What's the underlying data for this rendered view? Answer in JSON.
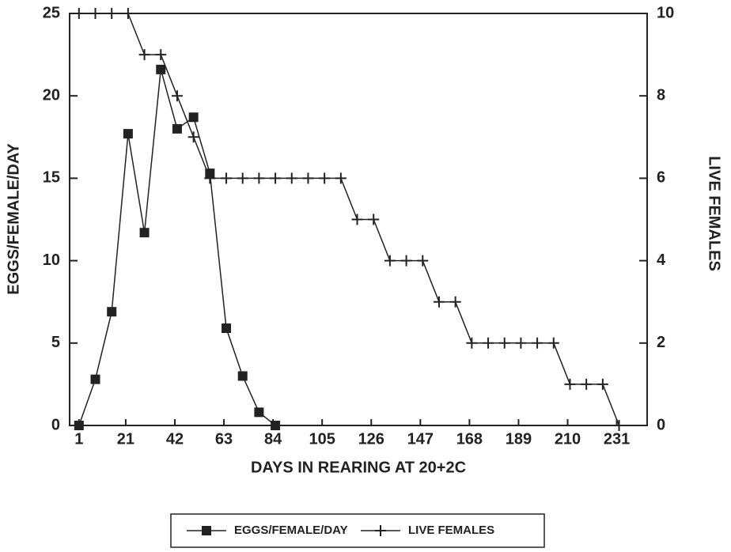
{
  "chart_data": {
    "type": "line",
    "xlabel": "DAYS IN REARING AT 20+2C",
    "ylabel": "EGGS/FEMALE/DAY",
    "y2label": "LIVE FEMALES",
    "x": [
      1,
      8,
      15,
      22,
      29,
      36,
      43,
      50,
      57,
      64,
      71,
      78,
      85,
      92,
      99,
      106,
      113,
      120,
      127,
      134,
      141,
      148,
      155,
      162,
      169,
      176,
      183,
      190,
      197,
      204,
      211,
      218,
      225,
      232
    ],
    "xlim": [
      -3,
      244
    ],
    "xticks": [
      1,
      21,
      42,
      63,
      84,
      105,
      126,
      147,
      168,
      189,
      210,
      231
    ],
    "ylim": [
      0,
      25
    ],
    "yticks": [
      0,
      5,
      10,
      15,
      20,
      25
    ],
    "y2lim": [
      0,
      10
    ],
    "y2ticks": [
      0,
      2,
      4,
      6,
      8,
      10
    ],
    "series": [
      {
        "name": "EGGS/FEMALE/DAY",
        "color": "#222222",
        "marker": "square",
        "values": [
          0,
          2.8,
          6.9,
          17.7,
          11.7,
          21.6,
          18.0,
          18.7,
          15.3,
          5.9,
          3.0,
          0.8,
          0,
          null,
          null,
          null,
          null,
          null,
          null,
          null,
          null,
          null,
          null,
          null,
          null,
          null,
          null,
          null,
          null,
          null,
          null,
          null,
          null,
          null
        ]
      },
      {
        "name": "LIVE FEMALES",
        "color": "#222222",
        "marker": "plus",
        "axis": "y2",
        "values": [
          10,
          10,
          10,
          10,
          9,
          9,
          8,
          7,
          6,
          6,
          6,
          6,
          6,
          6,
          6,
          6,
          6,
          5,
          5,
          4,
          4,
          4,
          3,
          3,
          2,
          2,
          2,
          2,
          2,
          2,
          1,
          1,
          1,
          0
        ]
      }
    ]
  }
}
